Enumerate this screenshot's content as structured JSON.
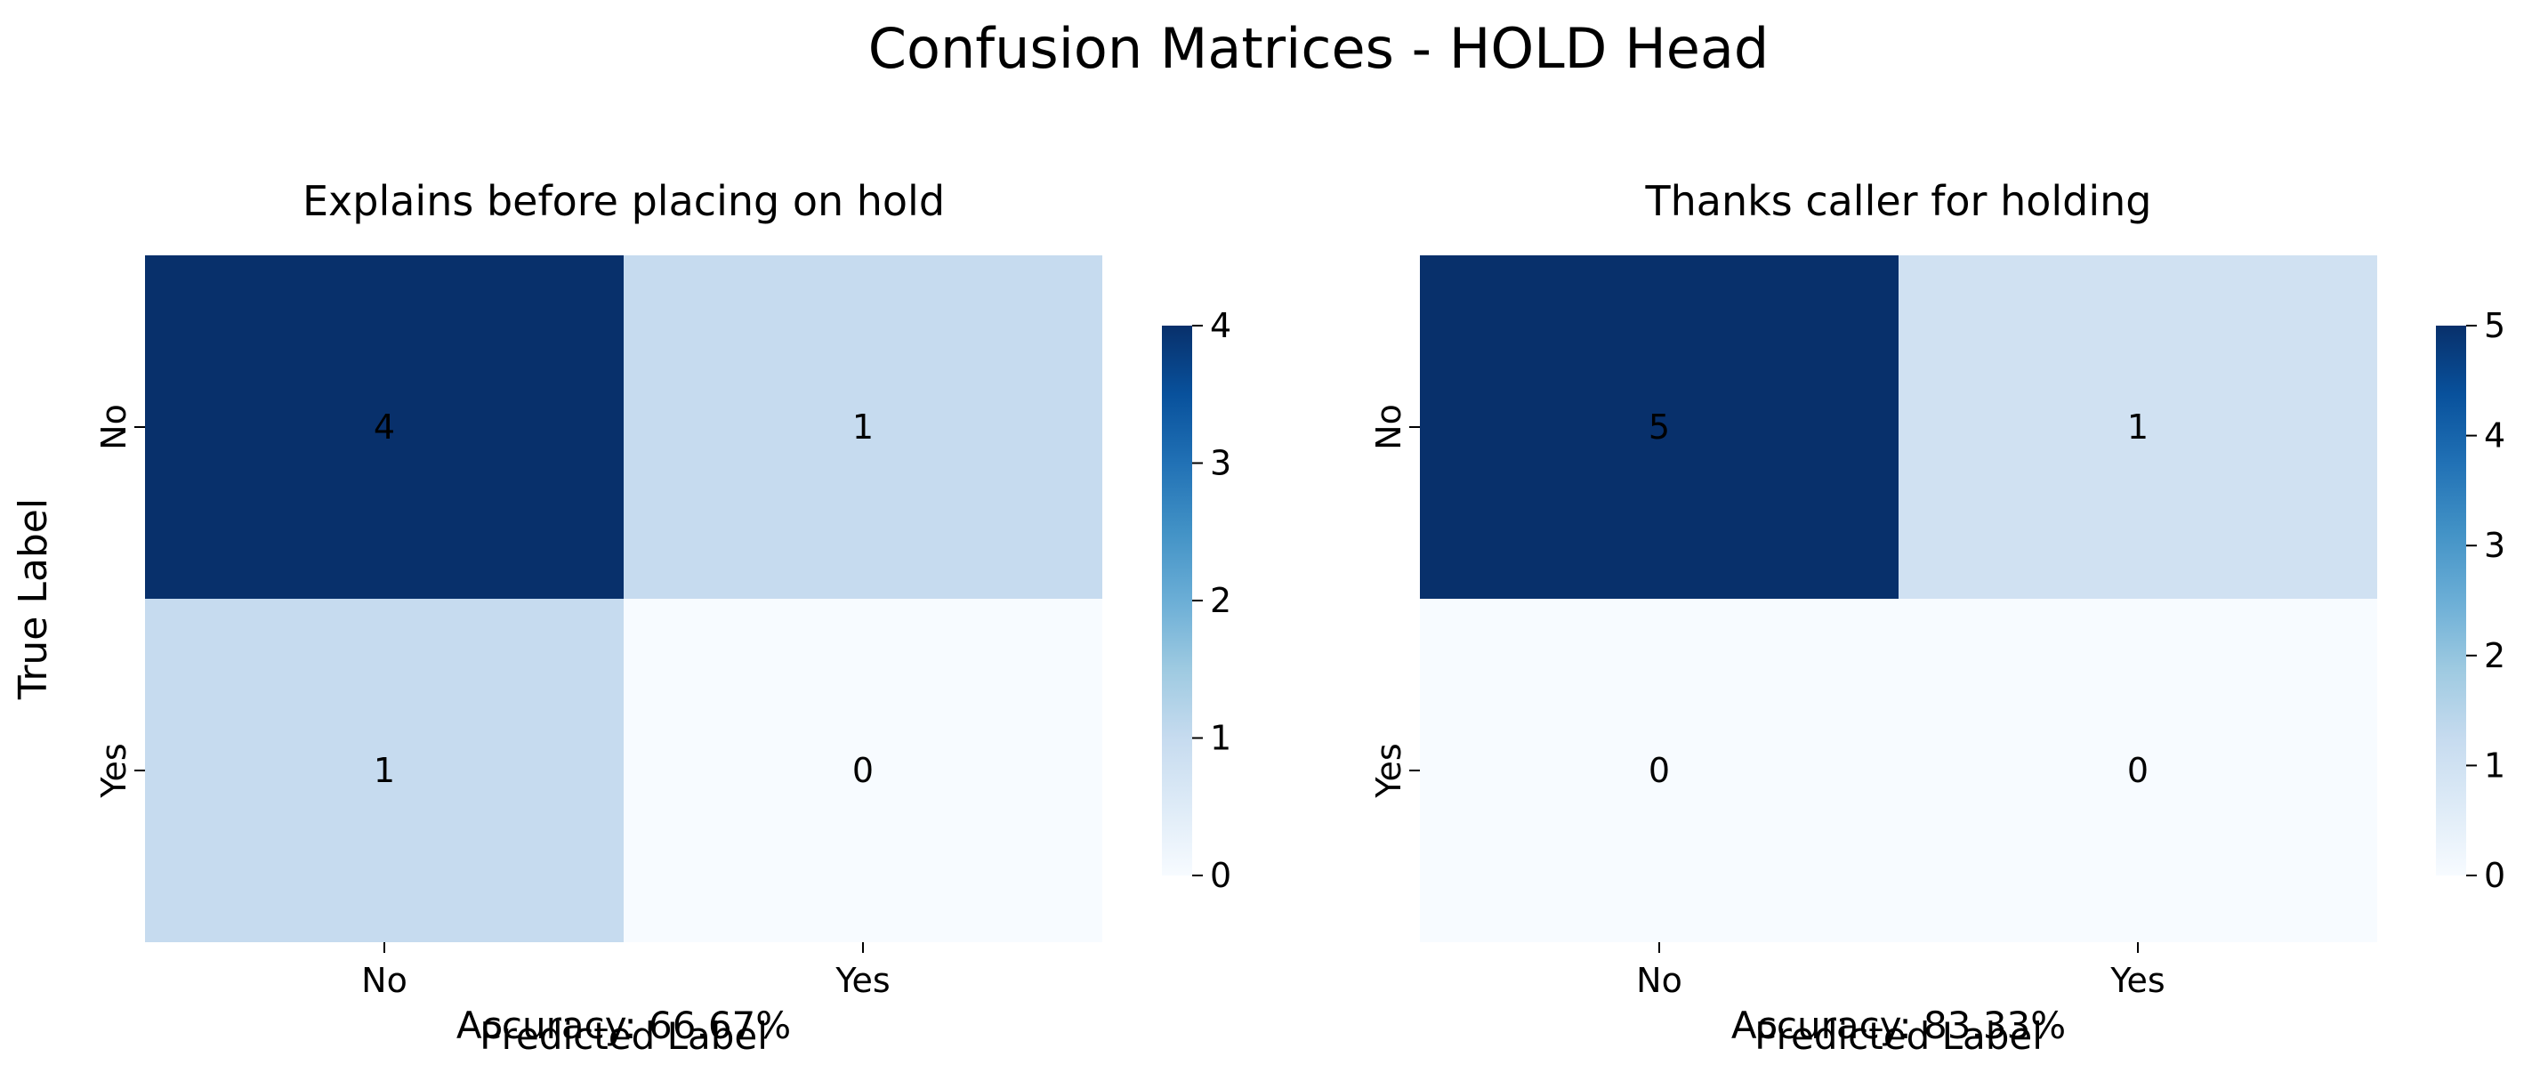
{
  "figure": {
    "title": "Confusion Matrices - HOLD Head"
  },
  "chart_data": [
    {
      "type": "heatmap",
      "title": "Explains before placing on hold",
      "xlabel": "Predicted Label",
      "ylabel": "True Label",
      "x_categories": [
        "No",
        "Yes"
      ],
      "y_categories": [
        "No",
        "Yes"
      ],
      "matrix": [
        [
          4,
          1
        ],
        [
          1,
          0
        ]
      ],
      "colorbar": {
        "min": 0,
        "max": 4,
        "ticks": [
          0,
          1,
          2,
          3,
          4
        ]
      },
      "footer": "Accuracy: 66.67%",
      "colormap": "Blues"
    },
    {
      "type": "heatmap",
      "title": "Thanks caller for holding",
      "xlabel": "Predicted Label",
      "ylabel": "",
      "x_categories": [
        "No",
        "Yes"
      ],
      "y_categories": [
        "No",
        "Yes"
      ],
      "matrix": [
        [
          5,
          1
        ],
        [
          0,
          0
        ]
      ],
      "colorbar": {
        "min": 0,
        "max": 5,
        "ticks": [
          0,
          1,
          2,
          3,
          4,
          5
        ]
      },
      "footer": "Accuracy: 83.33%",
      "colormap": "Blues"
    }
  ]
}
